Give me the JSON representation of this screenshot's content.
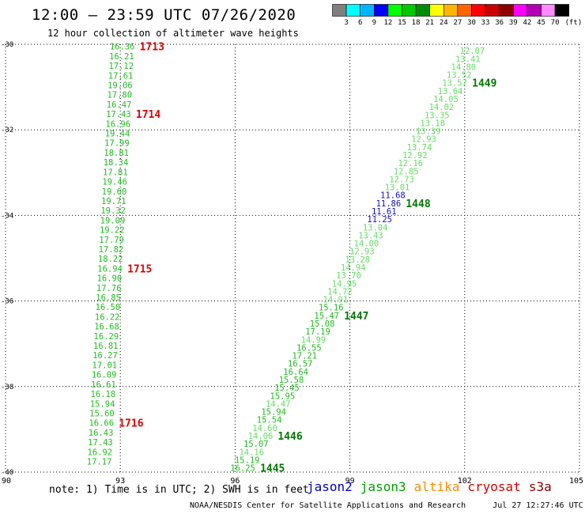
{
  "header": {
    "title": "12:00 – 23:59 UTC 07/26/2020",
    "subtitle": "12 hour collection of altimeter wave heights"
  },
  "colorscale": {
    "unit": "(ft)",
    "colors": [
      "#7f7f7f",
      "#00ffff",
      "#00b4ff",
      "#0000ff",
      "#00ff00",
      "#00c800",
      "#008c00",
      "#ffff00",
      "#ffb400",
      "#ff6400",
      "#ff0000",
      "#c80000",
      "#8c0000",
      "#ff00ff",
      "#b400b4",
      "#ff8cff",
      "#000000"
    ],
    "labels": [
      "3",
      "6",
      "9",
      "12",
      "15",
      "18",
      "21",
      "24",
      "27",
      "30",
      "33",
      "36",
      "39",
      "42",
      "45",
      "70"
    ]
  },
  "note": "note: 1) Time is in UTC; 2) SWH is in feet",
  "satellites": [
    {
      "name": "jason2",
      "color": "#0000c8"
    },
    {
      "name": "jason3",
      "color": "#00a000"
    },
    {
      "name": "altika",
      "color": "#ff8c00"
    },
    {
      "name": "cryosat",
      "color": "#e00000"
    },
    {
      "name": "s3a",
      "color": "#8b0000"
    }
  ],
  "footer": {
    "credit": "NOAA/NESDIS Center for Satellite Applications and Research",
    "timestamp": "Jul 27 12:27:46 UTC 2020"
  },
  "chart_data": {
    "type": "scatter",
    "xlim": [
      90,
      105
    ],
    "ylim": [
      -40,
      -30
    ],
    "x_ticks": [
      "90",
      "93",
      "96",
      "99",
      "102",
      "105"
    ],
    "y_ticks": [
      "-30",
      "-32",
      "-34",
      "-36",
      "-38",
      "-40"
    ],
    "x_tick_values": [
      90,
      93,
      96,
      99,
      102,
      105
    ],
    "y_tick_values": [
      -30,
      -32,
      -34,
      -36,
      -38,
      -40
    ],
    "grid": "dotted",
    "tracks": [
      {
        "satellite": "cryosat",
        "start": [
          93.05,
          -30.05
        ],
        "end": [
          92.45,
          -39.75
        ],
        "values": [
          "16.36",
          "16.21",
          "17.12",
          "17.61",
          "19.06",
          "17.80",
          "16.47",
          "17.43",
          "16.96",
          "19.44",
          "17.99",
          "18.81",
          "18.34",
          "17.81",
          "19.46",
          "19.60",
          "19.71",
          "19.32",
          "19.09",
          "19.22",
          "17.79",
          "17.82",
          "18.22",
          "16.94",
          "16.90",
          "17.76",
          "16.85",
          "16.50",
          "16.22",
          "16.68",
          "16.29",
          "16.81",
          "16.27",
          "17.01",
          "16.09",
          "16.61",
          "16.18",
          "15.94",
          "15.60",
          "16.66",
          "16.43",
          "17.43",
          "16.92",
          "17.17"
        ],
        "value_colors": [
          "green",
          "green",
          "green",
          "green",
          "green",
          "green",
          "green",
          "green",
          "green",
          "green",
          "green",
          "green",
          "green",
          "green",
          "green",
          "green",
          "green",
          "green",
          "green",
          "green",
          "green",
          "green",
          "green",
          "green",
          "green",
          "green",
          "green",
          "green",
          "green",
          "green",
          "green",
          "green",
          "green",
          "green",
          "green",
          "green",
          "green",
          "green",
          "green",
          "green",
          "green",
          "green",
          "green",
          "green"
        ],
        "time_labels": [
          {
            "text": "1713",
            "index": 0
          },
          {
            "text": "1714",
            "index": 7
          },
          {
            "text": "1715",
            "index": 23
          },
          {
            "text": "1716",
            "index": 39
          }
        ],
        "time_color": "red"
      },
      {
        "satellite": "jason3",
        "start": [
          102.2,
          -30.15
        ],
        "end": [
          96.2,
          -39.9
        ],
        "values": [
          "12.07",
          "13.41",
          "14.80",
          "13.52",
          "13.57",
          "13.64",
          "14.05",
          "14.02",
          "13.35",
          "13.18",
          "13.39",
          "12.93",
          "13.74",
          "12.92",
          "12.16",
          "12.85",
          "12.73",
          "13.01",
          "11.68",
          "11.86",
          "11.61",
          "11.25",
          "13.04",
          "13.43",
          "14.00",
          "12.93",
          "13.28",
          "14.94",
          "13.70",
          "14.95",
          "14.72",
          "14.91",
          "15.16",
          "15.47",
          "15.08",
          "17.19",
          "14.99",
          "16.55",
          "17.21",
          "16.57",
          "16.64",
          "15.58",
          "15.45",
          "15.95",
          "14.47",
          "15.94",
          "15.54",
          "14.60",
          "14.06",
          "15.07",
          "14.16",
          "15.19",
          "16.25"
        ],
        "value_colors": [
          "light",
          "light",
          "light",
          "light",
          "light",
          "light",
          "light",
          "light",
          "light",
          "light",
          "light",
          "light",
          "light",
          "light",
          "light",
          "light",
          "light",
          "light",
          "blue",
          "blue",
          "blue",
          "blue",
          "light",
          "light",
          "light",
          "light",
          "light",
          "light",
          "light",
          "light",
          "light",
          "light",
          "green",
          "green",
          "green",
          "green",
          "light",
          "green",
          "green",
          "green",
          "green",
          "green",
          "green",
          "green",
          "light",
          "green",
          "green",
          "light",
          "light",
          "green",
          "light",
          "green",
          "green"
        ],
        "time_labels": [
          {
            "text": "1449",
            "index": 4
          },
          {
            "text": "1448",
            "index": 19
          },
          {
            "text": "1447",
            "index": 33
          },
          {
            "text": "1446",
            "index": 48
          },
          {
            "text": "1445",
            "index": 52
          }
        ],
        "time_color": "darkgreen"
      }
    ]
  }
}
